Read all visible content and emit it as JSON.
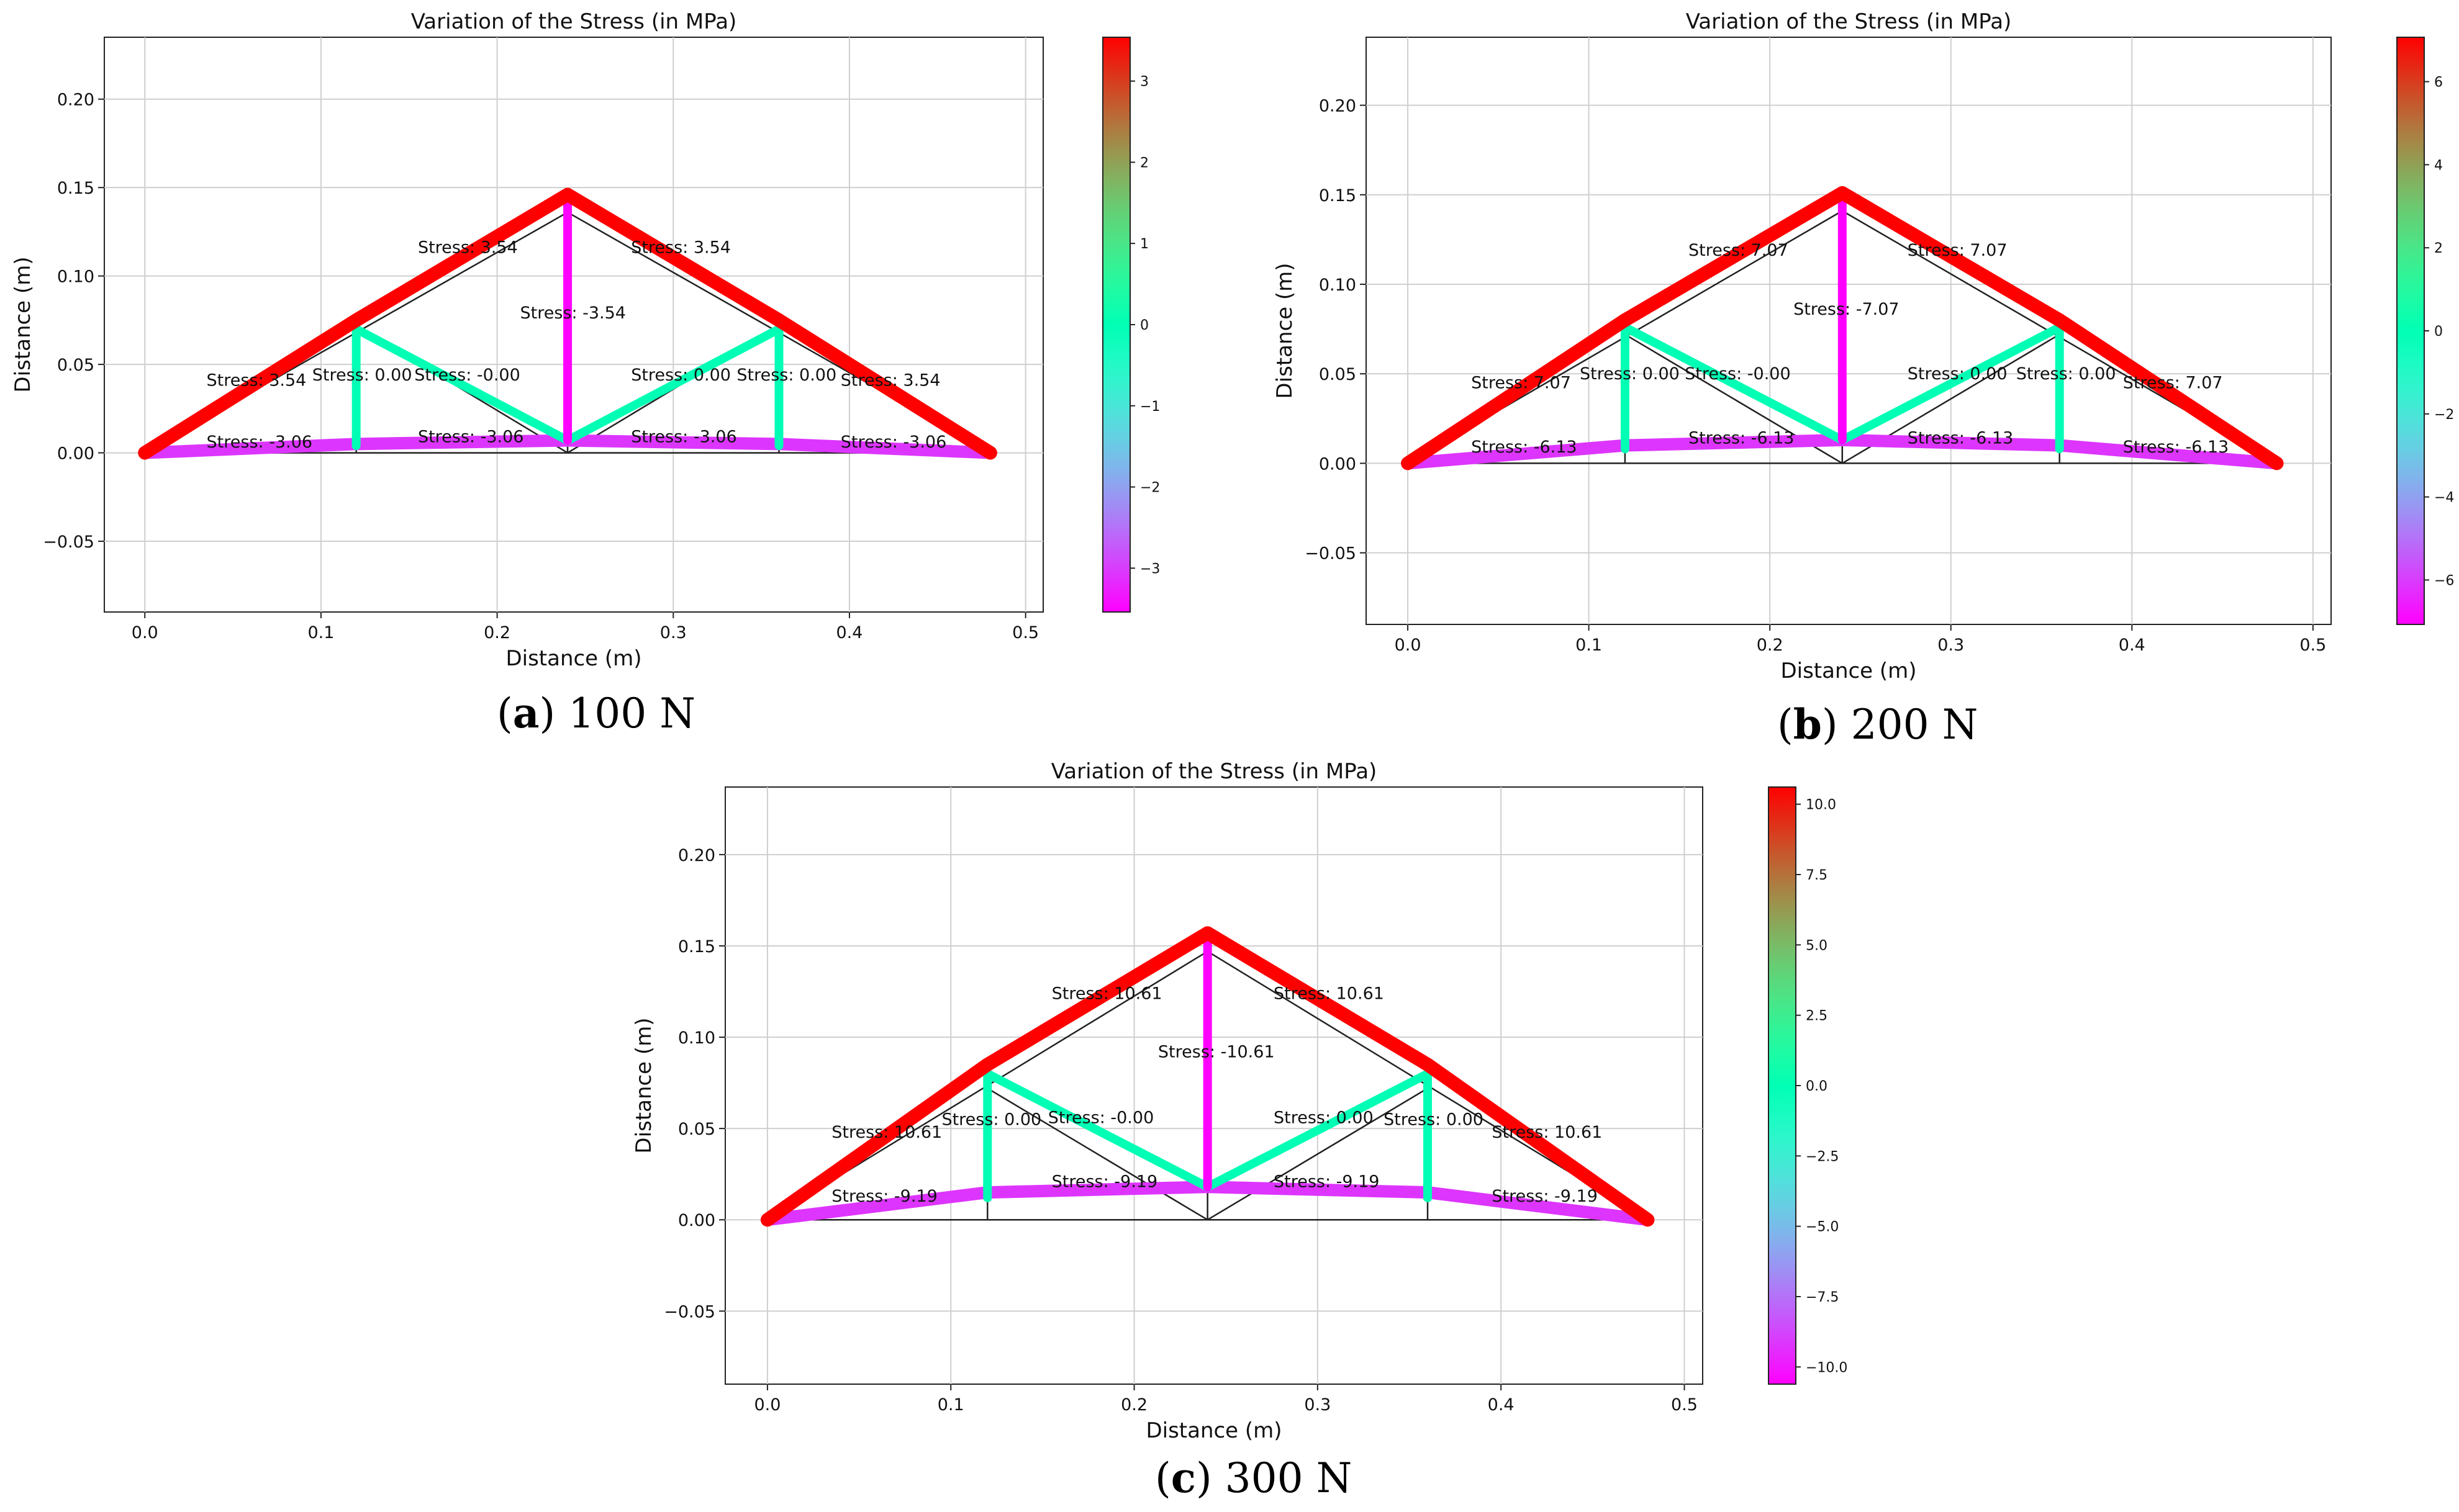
{
  "chart_data": [
    {
      "type": "truss",
      "title": "Variation of the Stress (in MPa)",
      "xlabel": "Distance (m)",
      "ylabel": "Distance (m)",
      "xlim": [
        -0.023,
        0.51
      ],
      "ylim": [
        -0.09,
        0.235
      ],
      "xticks": [
        "0.0",
        "0.1",
        "0.2",
        "0.3",
        "0.4",
        "0.5"
      ],
      "yticks": [
        "−0.05",
        "0.00",
        "0.05",
        "0.10",
        "0.15",
        "0.20"
      ],
      "grid": true,
      "caption": {
        "letter": "a",
        "load": "100 N"
      },
      "colorbar": {
        "vmin": -3.54,
        "vmax": 3.54,
        "ticks": [
          "−3",
          "−2",
          "−1",
          "0",
          "1",
          "2",
          "3"
        ]
      },
      "members": [
        {
          "from": [
            0,
            0
          ],
          "to": [
            0.12,
            0.075
          ],
          "stress": 3.54
        },
        {
          "from": [
            0.12,
            0.075
          ],
          "to": [
            0.24,
            0.146
          ],
          "stress": 3.54
        },
        {
          "from": [
            0.24,
            0.146
          ],
          "to": [
            0.36,
            0.075
          ],
          "stress": 3.54
        },
        {
          "from": [
            0.36,
            0.075
          ],
          "to": [
            0.48,
            0
          ],
          "stress": 3.54
        },
        {
          "from": [
            0.24,
            0.146
          ],
          "to": [
            0.24,
            0.007
          ],
          "stress": -3.54
        },
        {
          "from": [
            0.12,
            0.07
          ],
          "to": [
            0.12,
            0.004
          ],
          "stress": 0.0
        },
        {
          "from": [
            0.36,
            0.07
          ],
          "to": [
            0.36,
            0.004
          ],
          "stress": 0.0
        },
        {
          "from": [
            0.12,
            0.07
          ],
          "to": [
            0.24,
            0.007
          ],
          "stress": -0.0
        },
        {
          "from": [
            0.24,
            0.007
          ],
          "to": [
            0.36,
            0.07
          ],
          "stress": 0.0
        },
        {
          "from": [
            0,
            0
          ],
          "to": [
            0.12,
            0.005
          ],
          "stress": -3.06
        },
        {
          "from": [
            0.12,
            0.005
          ],
          "to": [
            0.24,
            0.007
          ],
          "stress": -3.06
        },
        {
          "from": [
            0.24,
            0.007
          ],
          "to": [
            0.36,
            0.005
          ],
          "stress": -3.06
        },
        {
          "from": [
            0.36,
            0.005
          ],
          "to": [
            0.48,
            0
          ],
          "stress": -3.06
        }
      ],
      "labels": [
        {
          "x": 0.035,
          "y": 0.038,
          "text": "Stress: 3.54"
        },
        {
          "x": 0.155,
          "y": 0.113,
          "text": "Stress: 3.54"
        },
        {
          "x": 0.276,
          "y": 0.113,
          "text": "Stress: 3.54"
        },
        {
          "x": 0.395,
          "y": 0.038,
          "text": "Stress: 3.54"
        },
        {
          "x": 0.213,
          "y": 0.076,
          "text": "Stress: -3.54"
        },
        {
          "x": 0.095,
          "y": 0.041,
          "text": "Stress: 0.00"
        },
        {
          "x": 0.153,
          "y": 0.041,
          "text": "Stress: -0.00"
        },
        {
          "x": 0.276,
          "y": 0.041,
          "text": "Stress: 0.00"
        },
        {
          "x": 0.336,
          "y": 0.041,
          "text": "Stress: 0.00"
        },
        {
          "x": 0.035,
          "y": 0.003,
          "text": "Stress: -3.06"
        },
        {
          "x": 0.155,
          "y": 0.006,
          "text": "Stress: -3.06"
        },
        {
          "x": 0.276,
          "y": 0.006,
          "text": "Stress: -3.06"
        },
        {
          "x": 0.395,
          "y": 0.003,
          "text": "Stress: -3.06"
        }
      ]
    },
    {
      "type": "truss",
      "title": "Variation of the Stress (in MPa)",
      "xlabel": "Distance (m)",
      "ylabel": "Distance (m)",
      "xlim": [
        -0.023,
        0.51
      ],
      "ylim": [
        -0.09,
        0.238
      ],
      "xticks": [
        "0.0",
        "0.1",
        "0.2",
        "0.3",
        "0.4",
        "0.5"
      ],
      "yticks": [
        "−0.05",
        "0.00",
        "0.05",
        "0.10",
        "0.15",
        "0.20"
      ],
      "grid": true,
      "caption": {
        "letter": "b",
        "load": "200 N"
      },
      "colorbar": {
        "vmin": -7.07,
        "vmax": 7.07,
        "ticks": [
          "−6",
          "−4",
          "−2",
          "0",
          "2",
          "4",
          "6"
        ]
      },
      "members": [
        {
          "from": [
            0,
            0
          ],
          "to": [
            0.12,
            0.08
          ],
          "stress": 7.07
        },
        {
          "from": [
            0.12,
            0.08
          ],
          "to": [
            0.24,
            0.151
          ],
          "stress": 7.07
        },
        {
          "from": [
            0.24,
            0.151
          ],
          "to": [
            0.36,
            0.08
          ],
          "stress": 7.07
        },
        {
          "from": [
            0.36,
            0.08
          ],
          "to": [
            0.48,
            0
          ],
          "stress": 7.07
        },
        {
          "from": [
            0.24,
            0.151
          ],
          "to": [
            0.24,
            0.013
          ],
          "stress": -7.07
        },
        {
          "from": [
            0.12,
            0.076
          ],
          "to": [
            0.12,
            0.008
          ],
          "stress": 0.0
        },
        {
          "from": [
            0.36,
            0.076
          ],
          "to": [
            0.36,
            0.008
          ],
          "stress": 0.0
        },
        {
          "from": [
            0.12,
            0.076
          ],
          "to": [
            0.24,
            0.013
          ],
          "stress": -0.0
        },
        {
          "from": [
            0.24,
            0.013
          ],
          "to": [
            0.36,
            0.076
          ],
          "stress": 0.0
        },
        {
          "from": [
            0,
            0
          ],
          "to": [
            0.12,
            0.01
          ],
          "stress": -6.13
        },
        {
          "from": [
            0.12,
            0.01
          ],
          "to": [
            0.24,
            0.013
          ],
          "stress": -6.13
        },
        {
          "from": [
            0.24,
            0.013
          ],
          "to": [
            0.36,
            0.01
          ],
          "stress": -6.13
        },
        {
          "from": [
            0.36,
            0.01
          ],
          "to": [
            0.48,
            0
          ],
          "stress": -6.13
        }
      ],
      "labels": [
        {
          "x": 0.035,
          "y": 0.042,
          "text": "Stress: 7.07"
        },
        {
          "x": 0.155,
          "y": 0.116,
          "text": "Stress: 7.07"
        },
        {
          "x": 0.276,
          "y": 0.116,
          "text": "Stress: 7.07"
        },
        {
          "x": 0.395,
          "y": 0.042,
          "text": "Stress: 7.07"
        },
        {
          "x": 0.213,
          "y": 0.083,
          "text": "Stress: -7.07"
        },
        {
          "x": 0.095,
          "y": 0.047,
          "text": "Stress: 0.00"
        },
        {
          "x": 0.153,
          "y": 0.047,
          "text": "Stress: -0.00"
        },
        {
          "x": 0.276,
          "y": 0.047,
          "text": "Stress: 0.00"
        },
        {
          "x": 0.336,
          "y": 0.047,
          "text": "Stress: 0.00"
        },
        {
          "x": 0.035,
          "y": 0.006,
          "text": "Stress: -6.13"
        },
        {
          "x": 0.155,
          "y": 0.011,
          "text": "Stress: -6.13"
        },
        {
          "x": 0.276,
          "y": 0.011,
          "text": "Stress: -6.13"
        },
        {
          "x": 0.395,
          "y": 0.006,
          "text": "Stress: -6.13"
        }
      ]
    },
    {
      "type": "truss",
      "title": "Variation of the Stress (in MPa)",
      "xlabel": "Distance (m)",
      "ylabel": "Distance (m)",
      "xlim": [
        -0.023,
        0.51
      ],
      "ylim": [
        -0.09,
        0.237
      ],
      "xticks": [
        "0.0",
        "0.1",
        "0.2",
        "0.3",
        "0.4",
        "0.5"
      ],
      "yticks": [
        "−0.05",
        "0.00",
        "0.05",
        "0.10",
        "0.15",
        "0.20"
      ],
      "grid": true,
      "caption": {
        "letter": "c",
        "load": "300 N"
      },
      "colorbar": {
        "vmin": -10.61,
        "vmax": 10.61,
        "ticks": [
          "−10.0",
          "−7.5",
          "−5.0",
          "−2.5",
          "0.0",
          "2.5",
          "5.0",
          "7.5",
          "10.0"
        ]
      },
      "members": [
        {
          "from": [
            0,
            0
          ],
          "to": [
            0.12,
            0.085
          ],
          "stress": 10.61
        },
        {
          "from": [
            0.12,
            0.085
          ],
          "to": [
            0.24,
            0.157
          ],
          "stress": 10.61
        },
        {
          "from": [
            0.24,
            0.157
          ],
          "to": [
            0.36,
            0.085
          ],
          "stress": 10.61
        },
        {
          "from": [
            0.36,
            0.085
          ],
          "to": [
            0.48,
            0
          ],
          "stress": 10.61
        },
        {
          "from": [
            0.24,
            0.157
          ],
          "to": [
            0.24,
            0.018
          ],
          "stress": -10.61
        },
        {
          "from": [
            0.12,
            0.08
          ],
          "to": [
            0.12,
            0.012
          ],
          "stress": 0.0
        },
        {
          "from": [
            0.36,
            0.08
          ],
          "to": [
            0.36,
            0.012
          ],
          "stress": 0.0
        },
        {
          "from": [
            0.12,
            0.08
          ],
          "to": [
            0.24,
            0.018
          ],
          "stress": -0.0
        },
        {
          "from": [
            0.24,
            0.018
          ],
          "to": [
            0.36,
            0.08
          ],
          "stress": 0.0
        },
        {
          "from": [
            0,
            0
          ],
          "to": [
            0.12,
            0.015
          ],
          "stress": -9.19
        },
        {
          "from": [
            0.12,
            0.015
          ],
          "to": [
            0.24,
            0.018
          ],
          "stress": -9.19
        },
        {
          "from": [
            0.24,
            0.018
          ],
          "to": [
            0.36,
            0.015
          ],
          "stress": -9.19
        },
        {
          "from": [
            0.36,
            0.015
          ],
          "to": [
            0.48,
            0
          ],
          "stress": -9.19
        }
      ],
      "labels": [
        {
          "x": 0.035,
          "y": 0.045,
          "text": "Stress: 10.61"
        },
        {
          "x": 0.155,
          "y": 0.121,
          "text": "Stress: 10.61"
        },
        {
          "x": 0.276,
          "y": 0.121,
          "text": "Stress: 10.61"
        },
        {
          "x": 0.395,
          "y": 0.045,
          "text": "Stress: 10.61"
        },
        {
          "x": 0.213,
          "y": 0.089,
          "text": "Stress: -10.61"
        },
        {
          "x": 0.095,
          "y": 0.052,
          "text": "Stress: 0.00"
        },
        {
          "x": 0.153,
          "y": 0.053,
          "text": "Stress: -0.00"
        },
        {
          "x": 0.276,
          "y": 0.053,
          "text": "Stress: 0.00"
        },
        {
          "x": 0.336,
          "y": 0.052,
          "text": "Stress: 0.00"
        },
        {
          "x": 0.035,
          "y": 0.01,
          "text": "Stress: -9.19"
        },
        {
          "x": 0.155,
          "y": 0.018,
          "text": "Stress: -9.19"
        },
        {
          "x": 0.276,
          "y": 0.018,
          "text": "Stress: -9.19"
        },
        {
          "x": 0.395,
          "y": 0.01,
          "text": "Stress: -9.19"
        }
      ]
    }
  ]
}
